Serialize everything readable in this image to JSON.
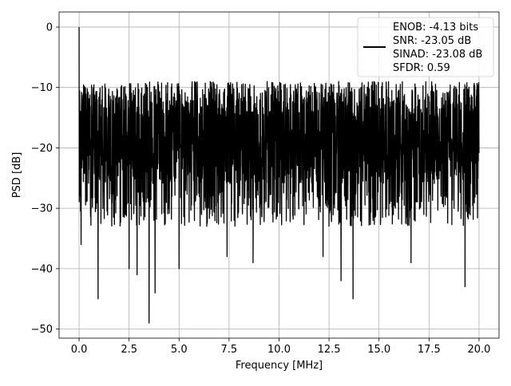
{
  "chart_data": {
    "type": "line",
    "title": "",
    "xlabel": "Frequency [MHz]",
    "ylabel": "PSD [dB]",
    "xlim": [
      -1.0,
      21.0
    ],
    "ylim": [
      -51.5,
      2.5
    ],
    "grid": true,
    "legend_position": "top-right",
    "x_ticks": [
      0.0,
      2.5,
      5.0,
      7.5,
      10.0,
      12.5,
      15.0,
      17.5,
      20.0
    ],
    "x_tick_labels": [
      "0.0",
      "2.5",
      "5.0",
      "7.5",
      "10.0",
      "12.5",
      "15.0",
      "17.5",
      "20.0"
    ],
    "y_ticks": [
      0,
      -10,
      -20,
      -30,
      -40,
      -50
    ],
    "y_tick_labels": [
      "0",
      "−10",
      "−20",
      "−30",
      "−40",
      "−50"
    ],
    "series": [
      {
        "name": "ENOB: -4.13 bits\nSNR: -23.05 dB\nSINAD: -23.08 dB\nSFDR: 0.59",
        "color": "#000000",
        "x_range": [
          0.0,
          20.0
        ],
        "peak": {
          "x": 0.0,
          "y": 0.0
        },
        "typical_upper_envelope_db": -10,
        "typical_lower_envelope_db": -30,
        "notable_dips": [
          {
            "x": 0.1,
            "y": -36
          },
          {
            "x": 0.95,
            "y": -45
          },
          {
            "x": 2.5,
            "y": -40
          },
          {
            "x": 2.9,
            "y": -41
          },
          {
            "x": 3.5,
            "y": -49
          },
          {
            "x": 3.8,
            "y": -44
          },
          {
            "x": 5.0,
            "y": -40
          },
          {
            "x": 7.4,
            "y": -38
          },
          {
            "x": 8.7,
            "y": -39
          },
          {
            "x": 12.2,
            "y": -38
          },
          {
            "x": 13.1,
            "y": -42
          },
          {
            "x": 13.7,
            "y": -45
          },
          {
            "x": 16.6,
            "y": -39
          },
          {
            "x": 19.3,
            "y": -43
          }
        ]
      }
    ],
    "legend": {
      "lines": [
        "ENOB: -4.13 bits",
        "SNR: -23.05 dB",
        "SINAD: -23.08 dB",
        "SFDR: 0.59"
      ]
    }
  }
}
